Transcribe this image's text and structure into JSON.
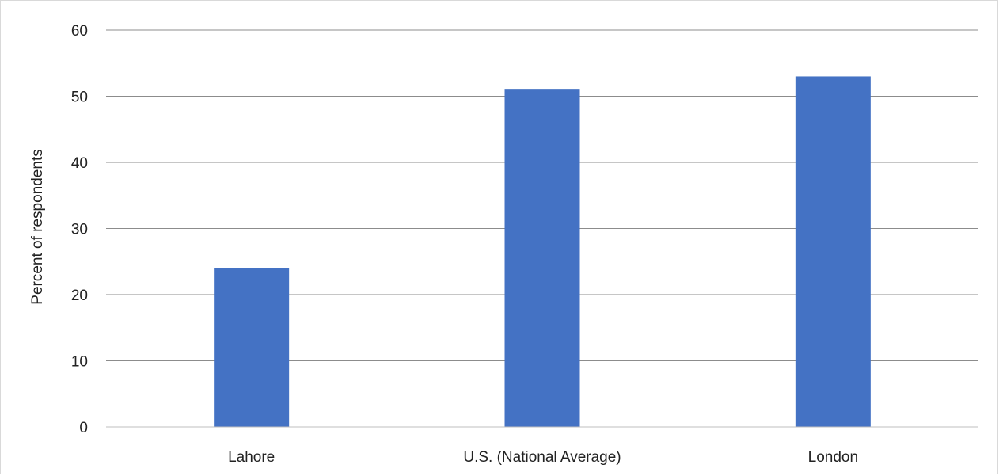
{
  "chart_data": {
    "type": "bar",
    "title": "",
    "xlabel": "",
    "ylabel": "Percent of respondents",
    "categories": [
      "Lahore",
      "U.S. (National Average)",
      "London"
    ],
    "series": [
      {
        "values": [
          24,
          51,
          53
        ],
        "color": "#4472C4"
      }
    ],
    "ylim": [
      0,
      60
    ],
    "yticks": [
      "0",
      "10",
      "20",
      "30",
      "40",
      "50",
      "60"
    ],
    "grid": true,
    "legend": "none"
  }
}
